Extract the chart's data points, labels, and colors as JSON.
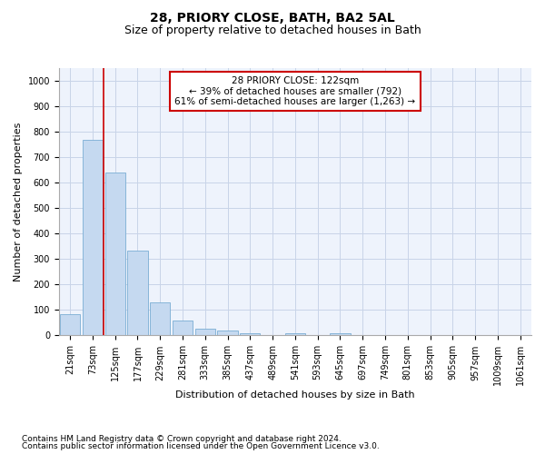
{
  "title": "28, PRIORY CLOSE, BATH, BA2 5AL",
  "subtitle": "Size of property relative to detached houses in Bath",
  "xlabel": "Distribution of detached houses by size in Bath",
  "ylabel": "Number of detached properties",
  "footnote1": "Contains HM Land Registry data © Crown copyright and database right 2024.",
  "footnote2": "Contains public sector information licensed under the Open Government Licence v3.0.",
  "annotation_line1": "28 PRIORY CLOSE: 122sqm",
  "annotation_line2": "← 39% of detached houses are smaller (792)",
  "annotation_line3": "61% of semi-detached houses are larger (1,263) →",
  "bar_categories": [
    "21sqm",
    "73sqm",
    "125sqm",
    "177sqm",
    "229sqm",
    "281sqm",
    "333sqm",
    "385sqm",
    "437sqm",
    "489sqm",
    "541sqm",
    "593sqm",
    "645sqm",
    "697sqm",
    "749sqm",
    "801sqm",
    "853sqm",
    "905sqm",
    "957sqm",
    "1009sqm",
    "1061sqm"
  ],
  "bar_values": [
    85,
    770,
    640,
    335,
    130,
    60,
    25,
    20,
    10,
    0,
    10,
    0,
    10,
    0,
    0,
    0,
    0,
    0,
    0,
    0,
    0
  ],
  "bar_color": "#c5d9f0",
  "bar_edge_color": "#7aadd4",
  "vline_color": "#cc0000",
  "vline_x": 2.0,
  "ylim": [
    0,
    1050
  ],
  "yticks": [
    0,
    100,
    200,
    300,
    400,
    500,
    600,
    700,
    800,
    900,
    1000
  ],
  "grid_color": "#c8d4e8",
  "background_color": "#eef3fc",
  "annotation_box_color": "#cc0000",
  "title_fontsize": 10,
  "subtitle_fontsize": 9,
  "axis_label_fontsize": 8,
  "tick_fontsize": 7,
  "annotation_fontsize": 7.5,
  "footnote_fontsize": 6.5
}
